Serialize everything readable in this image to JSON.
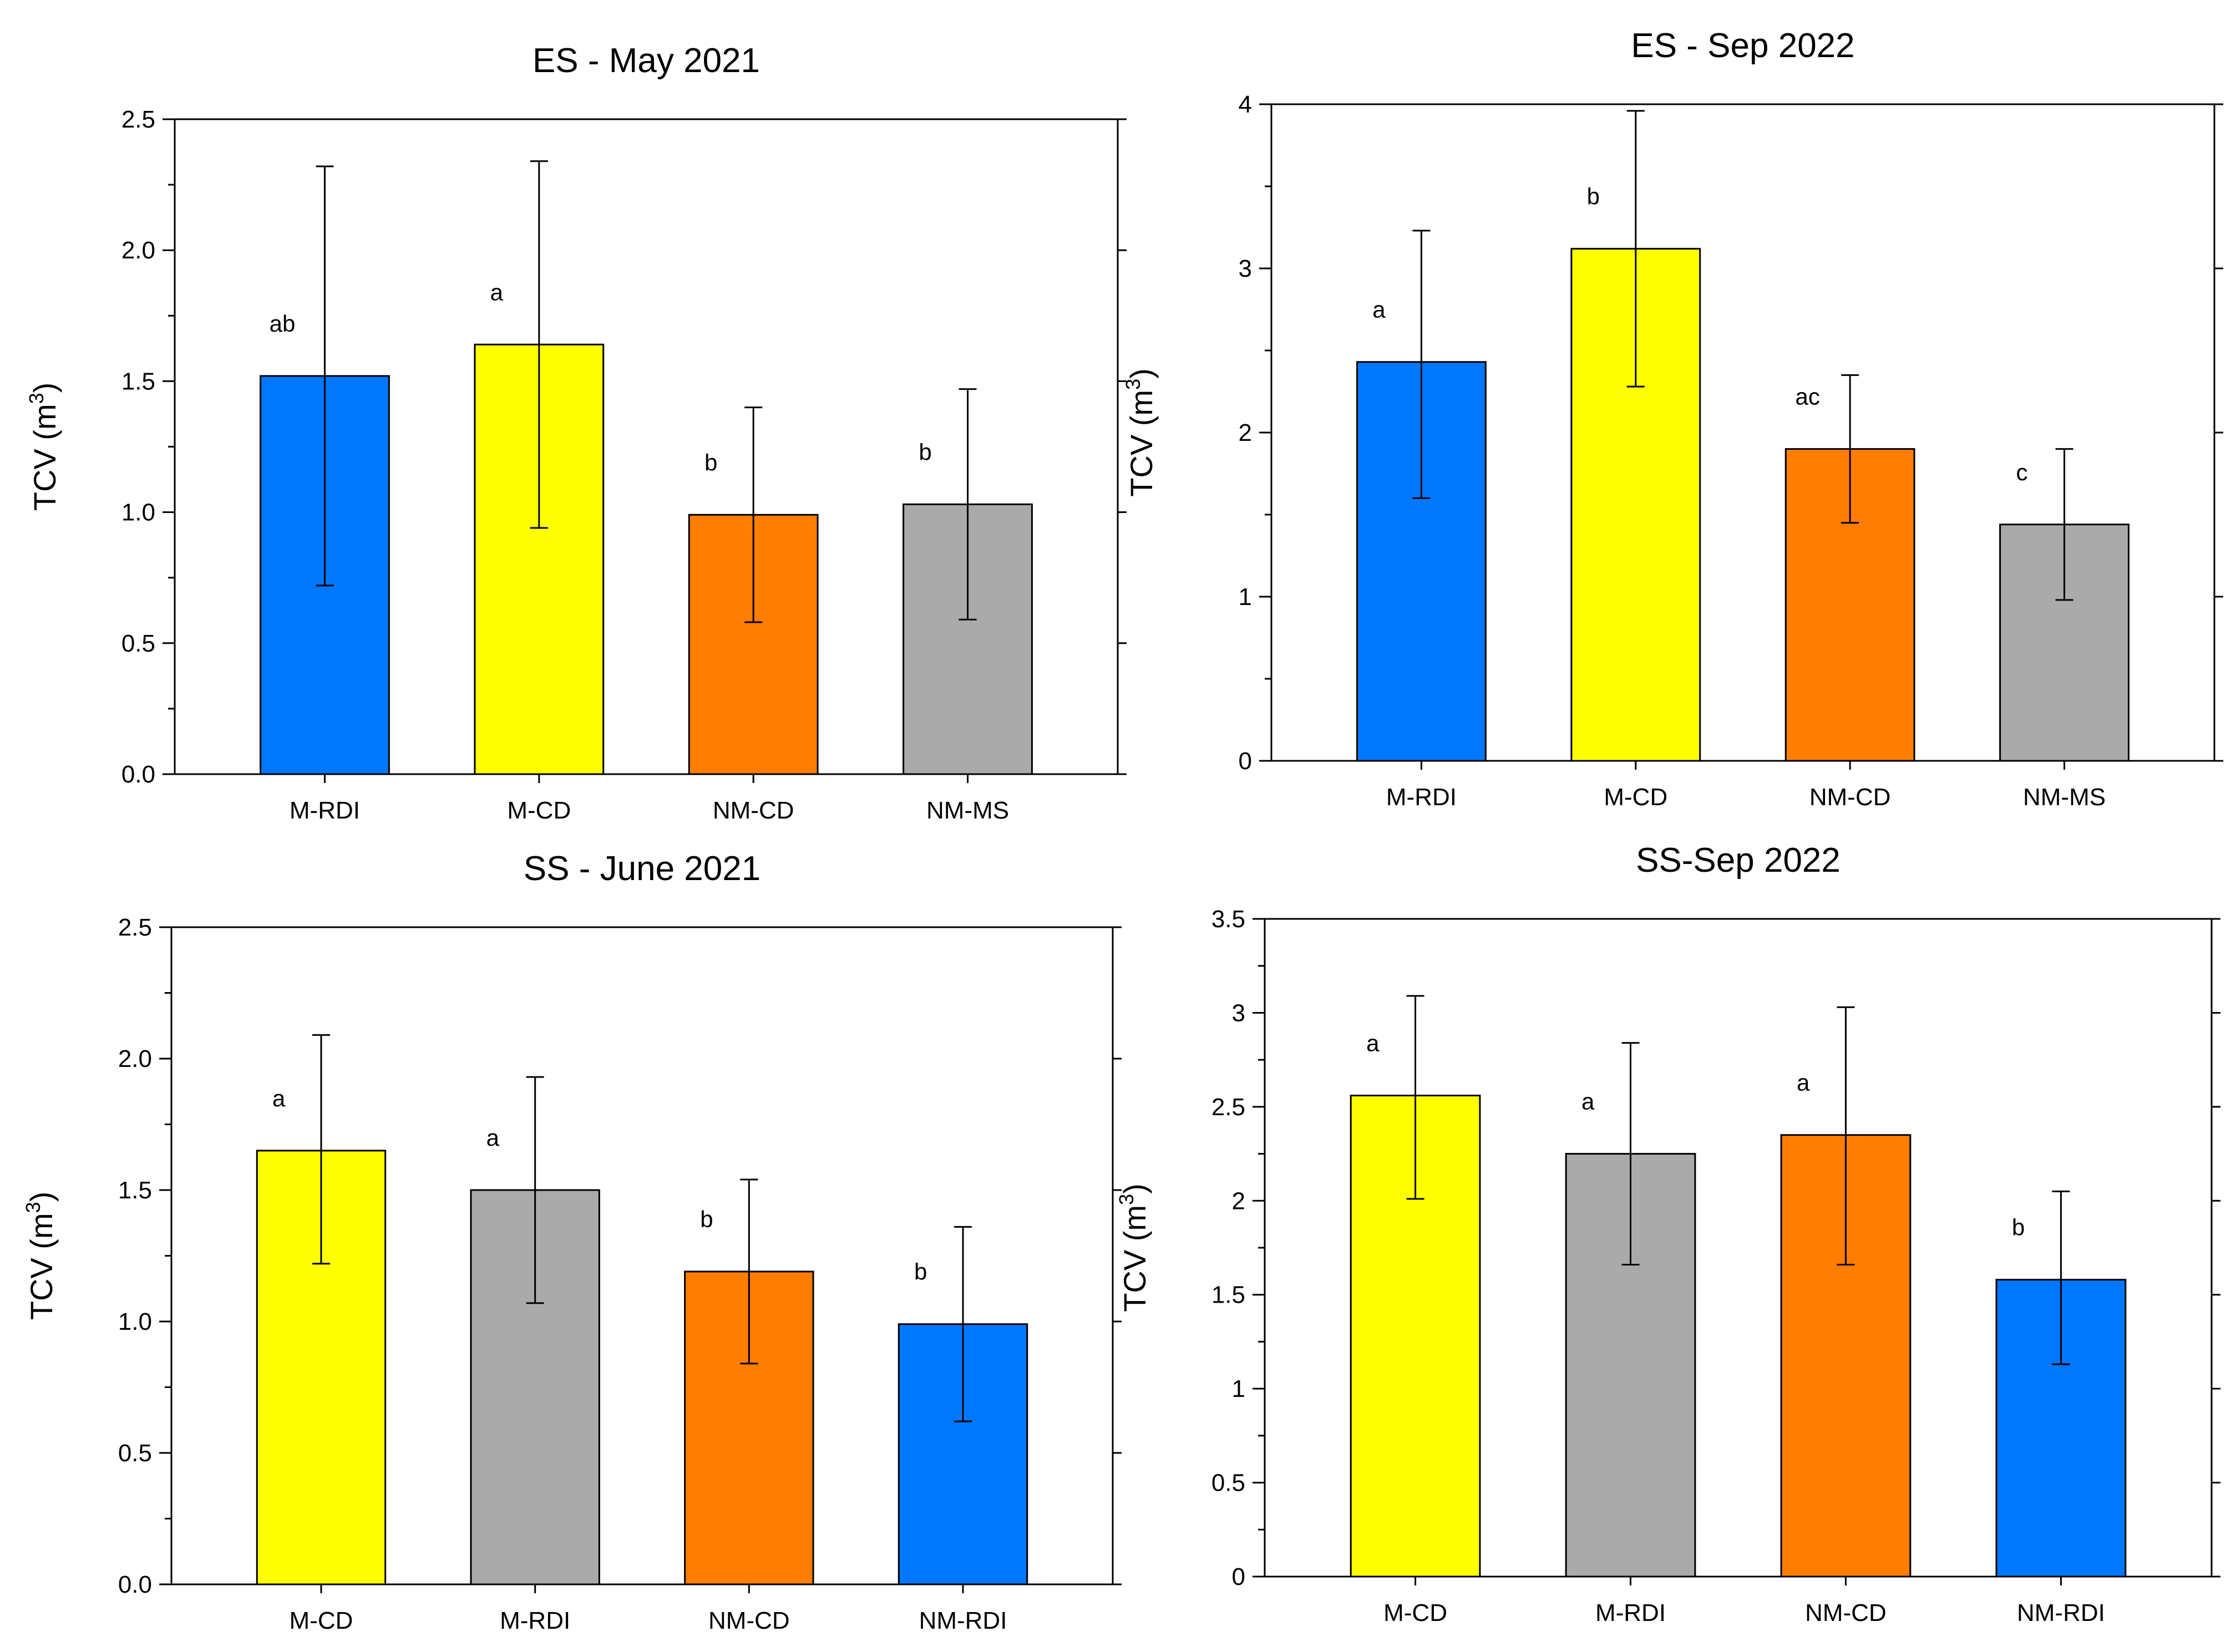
{
  "colors": {
    "M-RDI": "#0077ff",
    "M-CD": "#ffff00",
    "NM-CD": "#ff7d00",
    "NM-MS": "#aaaaaa",
    "NM-RDI": "#0077ff"
  },
  "chart_data": [
    {
      "type": "bar",
      "title": "ES - May 2021",
      "xlabel": "",
      "ylabel": "TCV (m3)",
      "ylim": [
        0,
        2.5
      ],
      "yticks": [
        "0.0",
        "0.5",
        "1.0",
        "1.5",
        "2.0",
        "2.5"
      ],
      "categories": [
        "M-RDI",
        "M-CD",
        "NM-CD",
        "NM-MS"
      ],
      "values": [
        1.52,
        1.64,
        0.99,
        1.03
      ],
      "error_low": [
        0.72,
        0.94,
        0.58,
        0.59
      ],
      "error_high": [
        2.32,
        2.34,
        1.4,
        1.47
      ],
      "significance": [
        "ab",
        "a",
        "b",
        "b"
      ],
      "bar_colors": [
        "#0077ff",
        "#ffff00",
        "#ff7d00",
        "#aaaaaa"
      ]
    },
    {
      "type": "bar",
      "title": "ES - Sep 2022",
      "xlabel": "",
      "ylabel": "TCV (m3)",
      "ylim": [
        0,
        4
      ],
      "yticks": [
        "0",
        "1",
        "2",
        "3",
        "4"
      ],
      "categories": [
        "M-RDI",
        "M-CD",
        "NM-CD",
        "NM-MS"
      ],
      "values": [
        2.43,
        3.12,
        1.9,
        1.44
      ],
      "error_low": [
        1.6,
        2.28,
        1.45,
        0.98
      ],
      "error_high": [
        3.23,
        3.96,
        2.35,
        1.9
      ],
      "significance": [
        "a",
        "b",
        "ac",
        "c"
      ],
      "bar_colors": [
        "#0077ff",
        "#ffff00",
        "#ff7d00",
        "#aaaaaa"
      ]
    },
    {
      "type": "bar",
      "title": "SS - June 2021",
      "xlabel": "",
      "ylabel": "TCV (m3)",
      "ylim": [
        0,
        2.5
      ],
      "yticks": [
        "0.0",
        "0.5",
        "1.0",
        "1.5",
        "2.0",
        "2.5"
      ],
      "categories": [
        "M-CD",
        "M-RDI",
        "NM-CD",
        "NM-RDI"
      ],
      "values": [
        1.65,
        1.5,
        1.19,
        0.99
      ],
      "error_low": [
        1.22,
        1.07,
        0.84,
        0.62
      ],
      "error_high": [
        2.09,
        1.93,
        1.54,
        1.36
      ],
      "significance": [
        "a",
        "a",
        "b",
        "b"
      ],
      "bar_colors": [
        "#ffff00",
        "#aaaaaa",
        "#ff7d00",
        "#0077ff"
      ]
    },
    {
      "type": "bar",
      "title": "SS-Sep 2022",
      "xlabel": "",
      "ylabel": "TCV (m3)",
      "ylim": [
        0,
        3.5
      ],
      "yticks": [
        "0",
        "0.5",
        "1",
        "1.5",
        "2",
        "2.5",
        "3",
        "3.5"
      ],
      "categories": [
        "M-CD",
        "M-RDI",
        "NM-CD",
        "NM-RDI"
      ],
      "values": [
        2.56,
        2.25,
        2.35,
        1.58
      ],
      "error_low": [
        2.01,
        1.66,
        1.66,
        1.13
      ],
      "error_high": [
        3.09,
        2.84,
        3.03,
        2.05
      ],
      "significance": [
        "a",
        "a",
        "a",
        "b"
      ],
      "bar_colors": [
        "#ffff00",
        "#aaaaaa",
        "#ff7d00",
        "#0077ff"
      ]
    }
  ]
}
